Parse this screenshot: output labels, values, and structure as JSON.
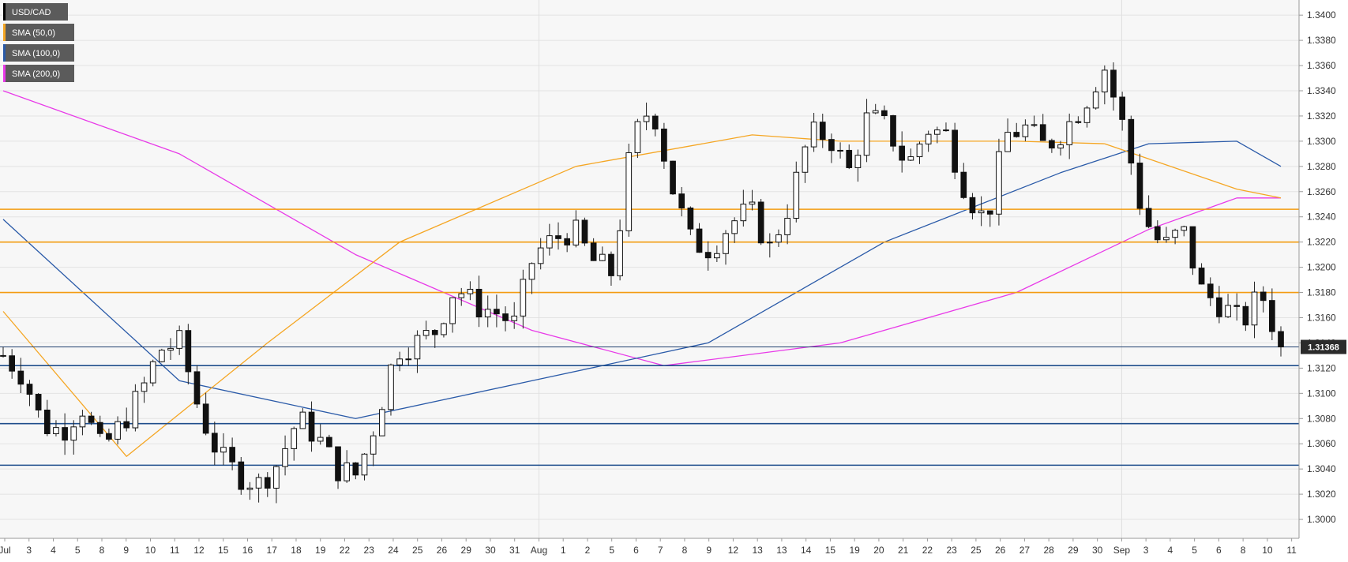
{
  "chart_data": {
    "type": "candlestick",
    "symbol": "USD/CAD",
    "ylim": [
      1.2985,
      1.3412
    ],
    "y_ticks": [
      "1.3000",
      "1.3020",
      "1.3040",
      "1.3060",
      "1.3080",
      "1.3100",
      "1.3120",
      "1.3140",
      "1.3160",
      "1.3180",
      "1.3200",
      "1.3220",
      "1.3240",
      "1.3260",
      "1.3280",
      "1.3300",
      "1.3320",
      "1.3340",
      "1.3360",
      "1.3380",
      "1.3400"
    ],
    "x_labels": [
      "Jul",
      "3",
      "4",
      "5",
      "8",
      "9",
      "10",
      "11",
      "12",
      "15",
      "16",
      "17",
      "18",
      "19",
      "22",
      "23",
      "24",
      "25",
      "26",
      "29",
      "30",
      "31",
      "Aug",
      "1",
      "2",
      "5",
      "6",
      "7",
      "8",
      "9",
      "12",
      "13",
      "13",
      "14",
      "15",
      "19",
      "20",
      "21",
      "22",
      "23",
      "25",
      "26",
      "27",
      "28",
      "29",
      "30",
      "Sep",
      "3",
      "4",
      "5",
      "6",
      "8",
      "10",
      "11"
    ],
    "grid": true,
    "legend_position": "top-left",
    "legend": [
      {
        "name": "USD/CAD",
        "color": "#000000"
      },
      {
        "name": "SMA (50,0)",
        "color": "#f5a623"
      },
      {
        "name": "SMA (100,0)",
        "color": "#2a5aa8"
      },
      {
        "name": "SMA (200,0)",
        "color": "#e83ae8"
      }
    ],
    "last_price": "1.31368",
    "last_price_value": 1.31368,
    "horizontal_levels": [
      {
        "value": 1.3246,
        "color": "#f39c12"
      },
      {
        "value": 1.322,
        "color": "#f39c12"
      },
      {
        "value": 1.318,
        "color": "#f39c12"
      },
      {
        "value": 1.3122,
        "color": "#1f4e8c"
      },
      {
        "value": 1.3076,
        "color": "#1f4e8c"
      },
      {
        "value": 1.3043,
        "color": "#1f4e8c"
      }
    ],
    "price_anchors": [
      [
        0,
        1.313
      ],
      [
        1,
        1.3115
      ],
      [
        2,
        1.3075
      ],
      [
        3,
        1.307
      ],
      [
        4,
        1.309
      ],
      [
        5,
        1.3055
      ],
      [
        6,
        1.3075
      ],
      [
        7,
        1.31
      ],
      [
        8,
        1.3135
      ],
      [
        9,
        1.314
      ],
      [
        10,
        1.3085
      ],
      [
        11,
        1.305
      ],
      [
        12,
        1.3035
      ],
      [
        13,
        1.3028
      ],
      [
        14,
        1.3045
      ],
      [
        15,
        1.308
      ],
      [
        16,
        1.3065
      ],
      [
        17,
        1.304
      ],
      [
        18,
        1.3035
      ],
      [
        19,
        1.308
      ],
      [
        20,
        1.3135
      ],
      [
        21,
        1.314
      ],
      [
        22,
        1.315
      ],
      [
        23,
        1.3185
      ],
      [
        24,
        1.317
      ],
      [
        25,
        1.3165
      ],
      [
        26,
        1.3155
      ],
      [
        27,
        1.321
      ],
      [
        28,
        1.3222
      ],
      [
        29,
        1.323
      ],
      [
        30,
        1.3205
      ],
      [
        31,
        1.3195
      ],
      [
        32,
        1.33
      ],
      [
        33,
        1.333
      ],
      [
        34,
        1.3265
      ],
      [
        35,
        1.322
      ],
      [
        36,
        1.3215
      ],
      [
        37,
        1.3235
      ],
      [
        38,
        1.3245
      ],
      [
        39,
        1.3215
      ],
      [
        40,
        1.325
      ],
      [
        41,
        1.3305
      ],
      [
        42,
        1.3305
      ],
      [
        43,
        1.3275
      ],
      [
        44,
        1.332
      ],
      [
        45,
        1.331
      ],
      [
        46,
        1.328
      ],
      [
        47,
        1.331
      ],
      [
        48,
        1.3305
      ],
      [
        49,
        1.326
      ],
      [
        50,
        1.3235
      ],
      [
        51,
        1.3305
      ],
      [
        52,
        1.331
      ],
      [
        53,
        1.3295
      ],
      [
        54,
        1.331
      ],
      [
        55,
        1.333
      ],
      [
        56,
        1.336
      ],
      [
        57,
        1.331
      ],
      [
        58,
        1.324
      ],
      [
        59,
        1.3215
      ],
      [
        60,
        1.323
      ],
      [
        61,
        1.318
      ],
      [
        62,
        1.317
      ],
      [
        63,
        1.3155
      ],
      [
        64,
        1.318
      ],
      [
        65,
        1.3137
      ]
    ],
    "sma_50": [
      [
        0,
        1.3165
      ],
      [
        14,
        1.305
      ],
      [
        30,
        1.314
      ],
      [
        45,
        1.322
      ],
      [
        65,
        1.328
      ],
      [
        85,
        1.3305
      ],
      [
        95,
        1.33
      ],
      [
        105,
        1.33
      ],
      [
        115,
        1.33
      ],
      [
        125,
        1.3298
      ],
      [
        140,
        1.3262
      ],
      [
        145,
        1.3255
      ]
    ],
    "sma_100": [
      [
        0,
        1.3238
      ],
      [
        20,
        1.311
      ],
      [
        40,
        1.308
      ],
      [
        60,
        1.311
      ],
      [
        80,
        1.314
      ],
      [
        100,
        1.322
      ],
      [
        120,
        1.3275
      ],
      [
        130,
        1.3298
      ],
      [
        140,
        1.33
      ],
      [
        145,
        1.328
      ]
    ],
    "sma_200": [
      [
        0,
        1.334
      ],
      [
        20,
        1.329
      ],
      [
        40,
        1.321
      ],
      [
        60,
        1.315
      ],
      [
        75,
        1.3122
      ],
      [
        95,
        1.314
      ],
      [
        115,
        1.318
      ],
      [
        130,
        1.323
      ],
      [
        140,
        1.3255
      ],
      [
        145,
        1.3255
      ]
    ]
  }
}
